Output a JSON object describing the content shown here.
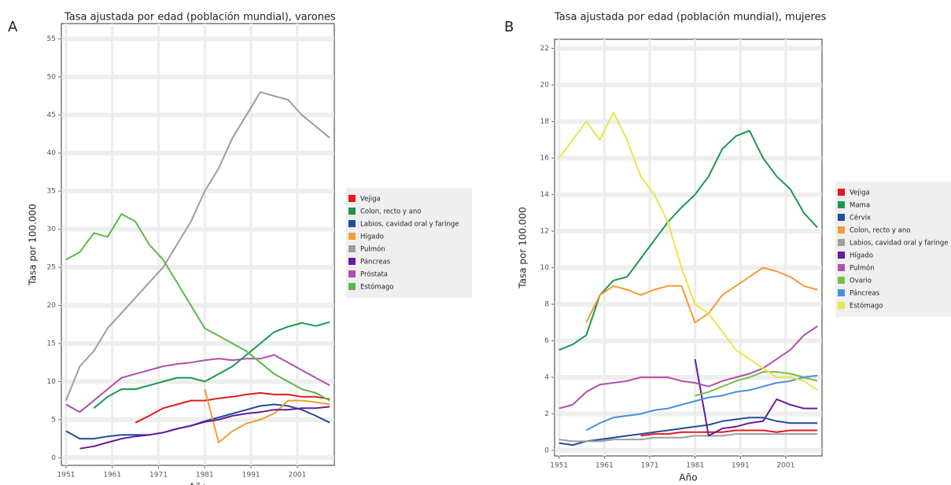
{
  "chart_data": [
    {
      "type": "line",
      "panel_label": "A",
      "title": "Tasa ajustada por edad (población mundial), varones",
      "x_label": "Año",
      "y_label": "Tasa por 100.000",
      "x": [
        1951,
        1954,
        1957,
        1960,
        1963,
        1966,
        1969,
        1972,
        1975,
        1978,
        1981,
        1984,
        1987,
        1990,
        1993,
        1996,
        1999,
        2002,
        2005,
        2008
      ],
      "xlim": [
        1950,
        2009
      ],
      "xticks": [
        1951,
        1961,
        1971,
        1981,
        1991,
        2001
      ],
      "ylim": [
        -1,
        57
      ],
      "yticks": [
        0,
        5,
        10,
        15,
        20,
        25,
        30,
        35,
        40,
        45,
        50,
        55
      ],
      "grid": true,
      "series": [
        {
          "name": "Vejiga",
          "color": "#e41a1c",
          "values": [
            null,
            null,
            null,
            null,
            null,
            4.6,
            5.5,
            6.5,
            7,
            7.5,
            7.5,
            7.8,
            8,
            8.3,
            8.5,
            8.3,
            8.3,
            8,
            8,
            7.7
          ]
        },
        {
          "name": "Colon, recto y ano",
          "color": "#1a9850",
          "values": [
            null,
            null,
            6.5,
            8,
            9,
            9,
            9.5,
            10,
            10.5,
            10.5,
            10,
            11,
            12,
            13.5,
            15,
            16.5,
            17.2,
            17.7,
            17.3,
            17.8
          ]
        },
        {
          "name": "Labios, cavidad oral y faringe",
          "color": "#1f4e9c",
          "values": [
            3.5,
            2.5,
            2.5,
            2.8,
            3,
            3,
            3,
            3.3,
            3.8,
            4.2,
            4.8,
            5.3,
            5.8,
            6.3,
            6.8,
            7,
            6.8,
            6.3,
            5.5,
            4.6
          ]
        },
        {
          "name": "Hígado",
          "color": "#f39c33",
          "values": [
            null,
            null,
            null,
            null,
            null,
            null,
            null,
            null,
            null,
            null,
            9,
            2,
            3.5,
            4.5,
            5,
            5.8,
            7.5,
            7.5,
            7.3,
            7
          ]
        },
        {
          "name": "Pulmón",
          "color": "#9e9e9e",
          "values": [
            7.5,
            12,
            14,
            17,
            19,
            21,
            23,
            25,
            28,
            31,
            35,
            38,
            42,
            45,
            48,
            47.5,
            47,
            45,
            43.5,
            42
          ]
        },
        {
          "name": "Páncreas",
          "color": "#6a1b9a",
          "values": [
            null,
            1.2,
            1.5,
            2,
            2.5,
            2.8,
            3,
            3.3,
            3.8,
            4.2,
            4.7,
            5,
            5.5,
            5.8,
            6,
            6.3,
            6.3,
            6.5,
            6.5,
            6.7
          ]
        },
        {
          "name": "Próstata",
          "color": "#b04fb0",
          "values": [
            7,
            6,
            7.5,
            9,
            10.5,
            11,
            11.5,
            12,
            12.3,
            12.5,
            12.8,
            13,
            12.8,
            13,
            13,
            13.5,
            12.5,
            11.5,
            10.5,
            9.5
          ]
        },
        {
          "name": "Estómago",
          "color": "#5cb947",
          "values": [
            26,
            27,
            29.5,
            29,
            32,
            31,
            28,
            26,
            23,
            20,
            17,
            16,
            15,
            14,
            12.5,
            11,
            10,
            9,
            8.5,
            7.5
          ]
        }
      ]
    },
    {
      "type": "line",
      "panel_label": "B",
      "title": "Tasa ajustada por edad (población mundial), mujeres",
      "x_label": "Año",
      "y_label": "Tasa por 100.000",
      "x": [
        1951,
        1954,
        1957,
        1960,
        1963,
        1966,
        1969,
        1972,
        1975,
        1978,
        1981,
        1984,
        1987,
        1990,
        1993,
        1996,
        1999,
        2002,
        2005,
        2008
      ],
      "xlim": [
        1950,
        2009
      ],
      "xticks": [
        1951,
        1961,
        1971,
        1981,
        1991,
        2001
      ],
      "ylim": [
        -0.3,
        22.5
      ],
      "yticks": [
        0,
        2,
        4,
        6,
        8,
        10,
        12,
        14,
        16,
        18,
        20,
        22
      ],
      "grid": true,
      "series": [
        {
          "name": "Vejiga",
          "color": "#e41a1c",
          "values": [
            null,
            null,
            null,
            null,
            null,
            null,
            0.8,
            0.9,
            0.9,
            1,
            1,
            1,
            1,
            1.1,
            1.1,
            1.1,
            1,
            1.1,
            1.1,
            1.1
          ]
        },
        {
          "name": "Mama",
          "color": "#1a9850",
          "values": [
            5.5,
            5.8,
            6.3,
            8.5,
            9.3,
            9.5,
            10.5,
            11.5,
            12.5,
            13.3,
            14,
            15,
            16.5,
            17.2,
            17.5,
            16,
            15,
            14.3,
            13,
            12.2
          ]
        },
        {
          "name": "Cérvix",
          "color": "#1f4e9c",
          "values": [
            0.4,
            0.3,
            0.5,
            0.6,
            0.7,
            0.8,
            0.9,
            1,
            1.1,
            1.2,
            1.3,
            1.4,
            1.6,
            1.7,
            1.8,
            1.8,
            1.6,
            1.5,
            1.5,
            1.5
          ]
        },
        {
          "name": "Colon, recto y ano",
          "color": "#f39c33",
          "values": [
            null,
            null,
            7,
            8.5,
            9,
            8.8,
            8.5,
            8.8,
            9,
            9,
            7,
            7.5,
            8.5,
            9,
            9.5,
            10,
            9.8,
            9.5,
            9,
            8.8
          ]
        },
        {
          "name": "Labios, cavidad oral y faringe",
          "color": "#9e9e9e",
          "values": [
            0.6,
            0.5,
            0.5,
            0.5,
            0.6,
            0.6,
            0.6,
            0.7,
            0.7,
            0.7,
            0.8,
            0.8,
            0.8,
            0.9,
            0.9,
            0.9,
            0.9,
            0.9,
            0.9,
            0.9
          ]
        },
        {
          "name": "Hígado",
          "color": "#6a1b9a",
          "values": [
            null,
            null,
            null,
            null,
            null,
            null,
            null,
            null,
            null,
            null,
            5,
            0.8,
            1.2,
            1.3,
            1.5,
            1.6,
            2.8,
            2.5,
            2.3,
            2.3
          ]
        },
        {
          "name": "Pulmón",
          "color": "#b04fb0",
          "values": [
            2.3,
            2.5,
            3.2,
            3.6,
            3.7,
            3.8,
            4,
            4,
            4,
            3.8,
            3.7,
            3.5,
            3.8,
            4,
            4.2,
            4.5,
            5,
            5.5,
            6.3,
            6.8
          ]
        },
        {
          "name": "Ovario",
          "color": "#76c043",
          "values": [
            null,
            null,
            null,
            null,
            null,
            null,
            null,
            null,
            null,
            null,
            3,
            3.2,
            3.5,
            3.8,
            4,
            4.3,
            4.3,
            4.2,
            4,
            3.8
          ]
        },
        {
          "name": "Páncreas",
          "color": "#4a90d9",
          "values": [
            null,
            null,
            1.1,
            1.5,
            1.8,
            1.9,
            2,
            2.2,
            2.3,
            2.5,
            2.7,
            2.9,
            3,
            3.2,
            3.3,
            3.5,
            3.7,
            3.8,
            4,
            4.1
          ]
        },
        {
          "name": "Estómago",
          "color": "#e8e64a",
          "values": [
            16,
            17,
            18,
            17,
            18.5,
            17,
            15,
            14,
            12.5,
            10,
            8,
            7.5,
            6.5,
            5.5,
            5,
            4.5,
            4,
            4,
            3.8,
            3.3
          ]
        }
      ]
    }
  ]
}
